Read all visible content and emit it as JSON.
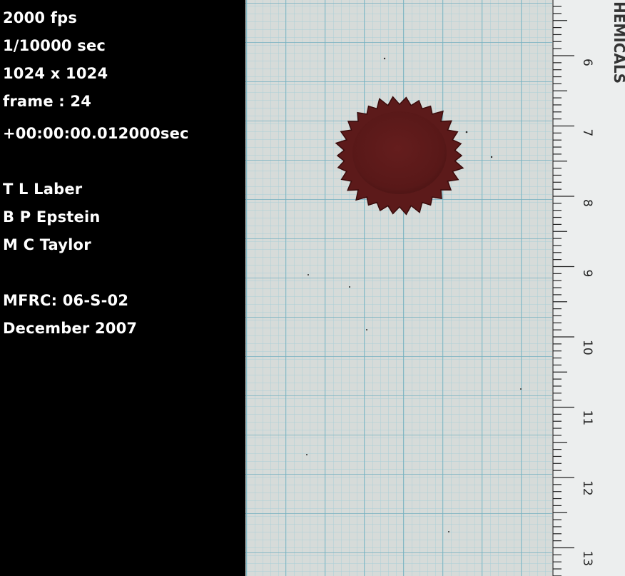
{
  "overlay": {
    "camera": {
      "fps": "2000 fps",
      "shutter": "1/10000 sec",
      "resolution": "1024 x 1024",
      "frame": "frame : 24",
      "timecode": "+00:00:00.012000sec"
    },
    "authors": [
      "T L Laber",
      "B P Epstein",
      "M C Taylor"
    ],
    "case": "MFRC:  06-S-02",
    "date": "December 2007"
  },
  "photo": {
    "ruler_labels": [
      "6",
      "7",
      "8",
      "9",
      "10",
      "11",
      "12",
      "13"
    ],
    "ruler_brand_fragment": "HEMICALS",
    "colors": {
      "paper": "#d6dbd9",
      "grid_line": "#7eb8c6",
      "blood": "#5c1a1a",
      "ruler": "#eceeee"
    }
  }
}
